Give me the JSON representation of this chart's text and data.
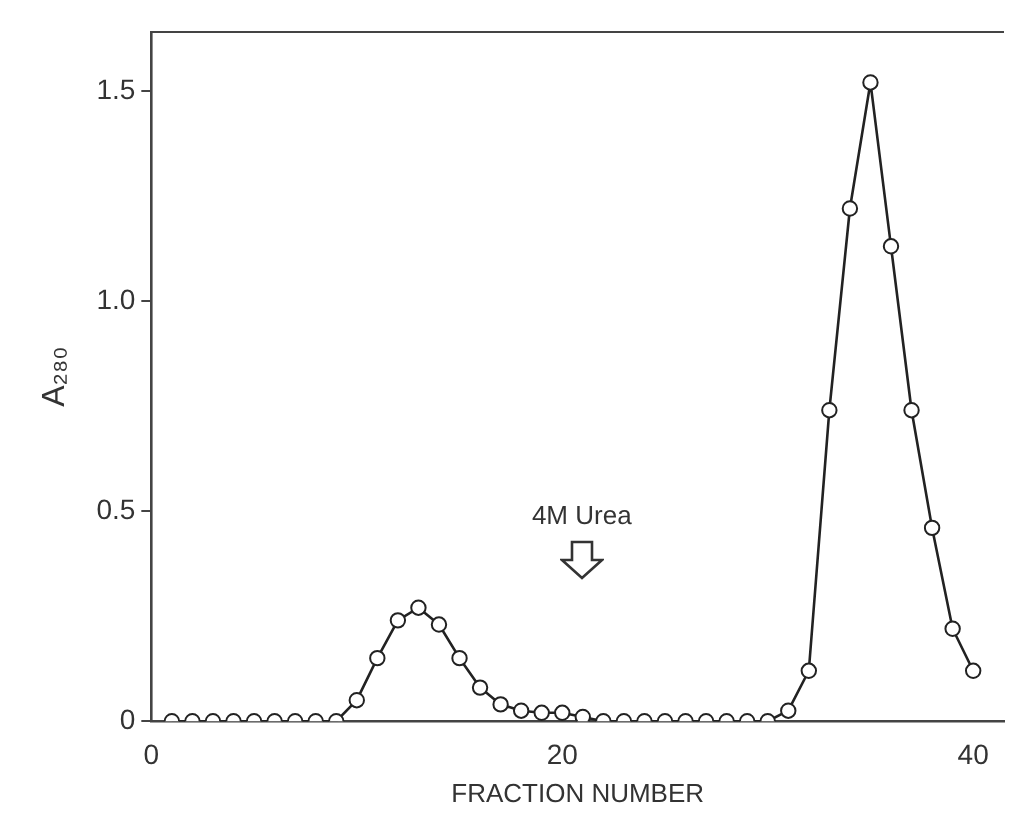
{
  "chart_data": {
    "type": "line",
    "xlabel": "FRACTION NUMBER",
    "ylabel": "A₂₈₀",
    "x": [
      1,
      2,
      3,
      4,
      5,
      6,
      7,
      8,
      9,
      10,
      11,
      12,
      13,
      14,
      15,
      16,
      17,
      18,
      19,
      20,
      21,
      22,
      23,
      24,
      25,
      26,
      27,
      28,
      29,
      30,
      31,
      32,
      33,
      34,
      35,
      36,
      37,
      38,
      39,
      40
    ],
    "series": [
      {
        "color": "#222222",
        "values": [
          0,
          0,
          0,
          0,
          0,
          0,
          0,
          0,
          0,
          0.05,
          0.15,
          0.24,
          0.27,
          0.23,
          0.15,
          0.08,
          0.04,
          0.025,
          0.02,
          0.02,
          0.01,
          0,
          0,
          0,
          0,
          0,
          0,
          0,
          0,
          0,
          0.025,
          0.12,
          0.74,
          1.22,
          1.52,
          1.13,
          0.74,
          0.46,
          0.22,
          0.12
        ]
      }
    ],
    "xlim": [
      0,
      41.5
    ],
    "xticks": [
      0,
      20,
      40
    ],
    "ylim": [
      0,
      1.64
    ],
    "yticks": [
      0,
      0.5,
      {
        "value": 1,
        "label": "1.0"
      },
      1.5
    ],
    "annotations": [
      "4M Urea"
    ],
    "grid": false,
    "legend": false,
    "marker": "circle",
    "line_style": "solid"
  }
}
